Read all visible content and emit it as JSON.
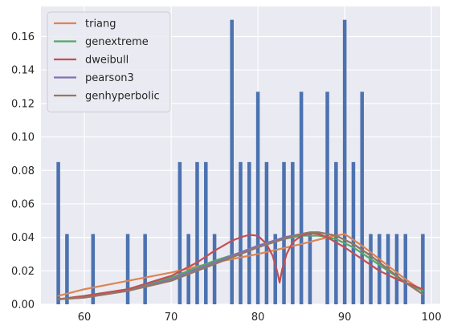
{
  "chart_data": {
    "type": "bar",
    "title": "",
    "xlabel": "",
    "ylabel": "",
    "xlim": [
      55,
      101
    ],
    "ylim": [
      0,
      0.178
    ],
    "x_ticks": [
      60,
      70,
      80,
      90,
      100
    ],
    "y_ticks": [
      0.0,
      0.02,
      0.04,
      0.06,
      0.08,
      0.1,
      0.12,
      0.14,
      0.16
    ],
    "grid": true,
    "legend_position": "top-left",
    "background_color": "#eaeaf2",
    "bar_color": "#4c72b0",
    "histogram": {
      "x": [
        57,
        58,
        61,
        65,
        67,
        71,
        72,
        73,
        74,
        75,
        77,
        78,
        79,
        80,
        81,
        82,
        83,
        84,
        85,
        86,
        88,
        89,
        90,
        91,
        92,
        93,
        94,
        95,
        96,
        97,
        99
      ],
      "values": [
        0.085,
        0.042,
        0.042,
        0.042,
        0.042,
        0.085,
        0.042,
        0.085,
        0.085,
        0.042,
        0.17,
        0.085,
        0.085,
        0.127,
        0.085,
        0.042,
        0.085,
        0.085,
        0.127,
        0.042,
        0.127,
        0.085,
        0.17,
        0.085,
        0.127,
        0.042,
        0.042,
        0.042,
        0.042,
        0.042,
        0.042
      ]
    },
    "series": [
      {
        "name": "triang",
        "color": "#dd8452",
        "x": [
          57,
          60,
          65,
          70,
          75,
          80,
          85,
          88,
          90,
          92,
          95,
          97,
          99
        ],
        "y": [
          0.005,
          0.009,
          0.014,
          0.019,
          0.025,
          0.03,
          0.036,
          0.04,
          0.042,
          0.035,
          0.023,
          0.015,
          0.008
        ]
      },
      {
        "name": "genextreme",
        "color": "#55a868",
        "x": [
          57,
          60,
          65,
          70,
          72,
          75,
          78,
          80,
          83,
          85,
          86,
          87,
          89,
          91,
          93,
          95,
          97,
          99
        ],
        "y": [
          0.003,
          0.005,
          0.009,
          0.016,
          0.02,
          0.026,
          0.031,
          0.035,
          0.039,
          0.041,
          0.041,
          0.041,
          0.039,
          0.034,
          0.027,
          0.02,
          0.013,
          0.008
        ]
      },
      {
        "name": "dweibull",
        "color": "#c44e52",
        "x": [
          57,
          60,
          65,
          70,
          73,
          75,
          77,
          78,
          79,
          80,
          81,
          81.7,
          82.2,
          82.5,
          82.8,
          83.3,
          84,
          85,
          86,
          87,
          88,
          90,
          92,
          94,
          96,
          98,
          99
        ],
        "y": [
          0.003,
          0.005,
          0.009,
          0.017,
          0.025,
          0.032,
          0.038,
          0.04,
          0.0415,
          0.041,
          0.036,
          0.029,
          0.02,
          0.013,
          0.021,
          0.03,
          0.037,
          0.041,
          0.0425,
          0.042,
          0.04,
          0.034,
          0.027,
          0.02,
          0.015,
          0.011,
          0.009
        ]
      },
      {
        "name": "pearson3",
        "color": "#8172b3",
        "x": [
          57,
          60,
          65,
          70,
          72,
          75,
          78,
          80,
          83,
          85,
          86,
          87,
          89,
          91,
          93,
          95,
          97,
          99
        ],
        "y": [
          0.003,
          0.004,
          0.008,
          0.015,
          0.019,
          0.025,
          0.031,
          0.035,
          0.04,
          0.042,
          0.043,
          0.043,
          0.041,
          0.036,
          0.029,
          0.021,
          0.013,
          0.006
        ]
      },
      {
        "name": "genhyperbolic",
        "color": "#937860",
        "x": [
          57,
          60,
          65,
          70,
          72,
          75,
          78,
          80,
          83,
          85,
          86,
          87,
          89,
          91,
          93,
          95,
          97,
          99
        ],
        "y": [
          0.003,
          0.004,
          0.008,
          0.014,
          0.018,
          0.024,
          0.03,
          0.034,
          0.039,
          0.042,
          0.043,
          0.043,
          0.041,
          0.036,
          0.029,
          0.021,
          0.013,
          0.006
        ]
      }
    ]
  }
}
